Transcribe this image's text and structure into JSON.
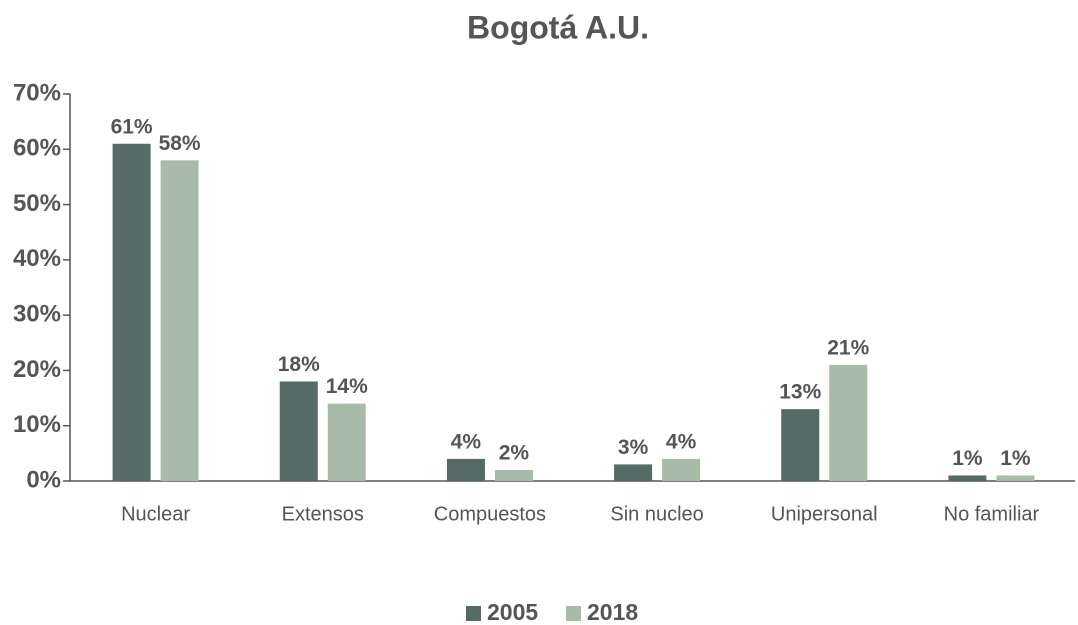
{
  "chart_data": {
    "type": "bar",
    "title": "Bogotá A.U.",
    "categories": [
      "Nuclear",
      "Extensos",
      "Compuestos",
      "Sin nucleo",
      "Unipersonal",
      "No familiar"
    ],
    "series": [
      {
        "name": "2005",
        "color": "#546b66",
        "values": [
          61,
          18,
          4,
          3,
          13,
          1
        ],
        "value_labels": [
          "61%",
          "18%",
          "4%",
          "3%",
          "13%",
          "1%"
        ]
      },
      {
        "name": "2018",
        "color": "#a8bba8",
        "values": [
          58,
          14,
          2,
          4,
          21,
          1
        ],
        "value_labels": [
          "58%",
          "14%",
          "2%",
          "4%",
          "21%",
          "1%"
        ]
      }
    ],
    "ylim": [
      0,
      70
    ],
    "yticks": [
      {
        "value": 0,
        "label": "0%"
      },
      {
        "value": 10,
        "label": "10%"
      },
      {
        "value": 20,
        "label": "20%"
      },
      {
        "value": 30,
        "label": "30%"
      },
      {
        "value": 40,
        "label": "40%"
      },
      {
        "value": 50,
        "label": "50%"
      },
      {
        "value": 60,
        "label": "60%"
      },
      {
        "value": 70,
        "label": "70%"
      }
    ],
    "legend": "bottom"
  }
}
